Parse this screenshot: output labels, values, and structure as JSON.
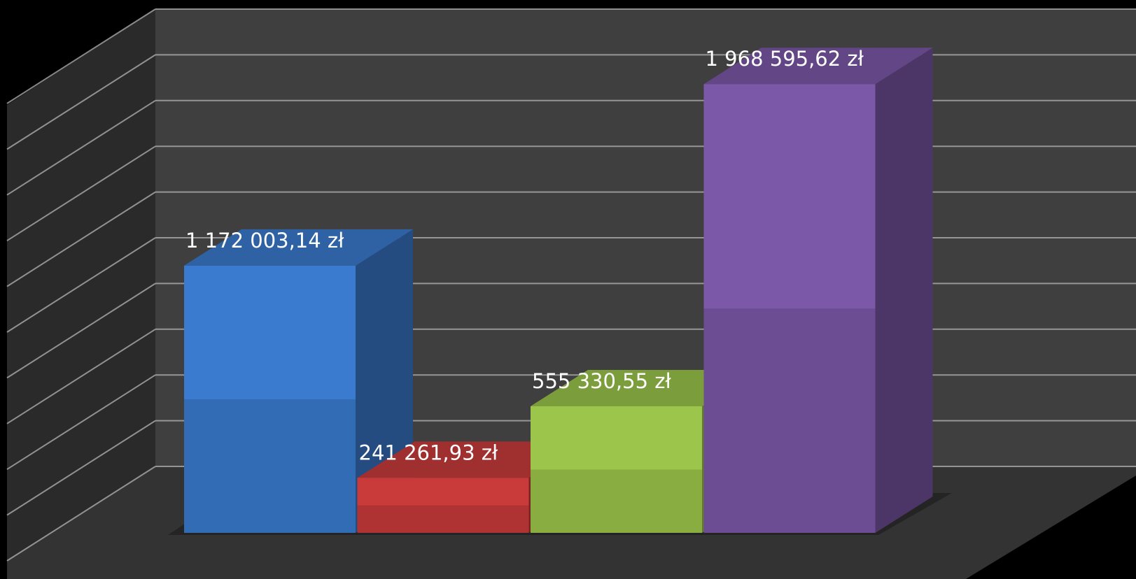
{
  "chart_data": {
    "type": "bar3d",
    "categories": [
      null,
      null,
      null,
      null
    ],
    "values": [
      1172003.14,
      241261.93,
      555330.55,
      1968595.62
    ],
    "value_labels": [
      "1 172 003,14 zł",
      "241 261,93 zł",
      "555 330,55 zł",
      "1 968 595,62 zł"
    ],
    "colors": [
      "#3a7bcf",
      "#c93b3b",
      "#9cc54b",
      "#7b58a8"
    ],
    "ylim": [
      0,
      2000000
    ],
    "yticks": [
      0,
      200000,
      400000,
      600000,
      800000,
      1000000,
      1200000,
      1400000,
      1600000,
      1800000,
      2000000
    ],
    "grid": true
  }
}
